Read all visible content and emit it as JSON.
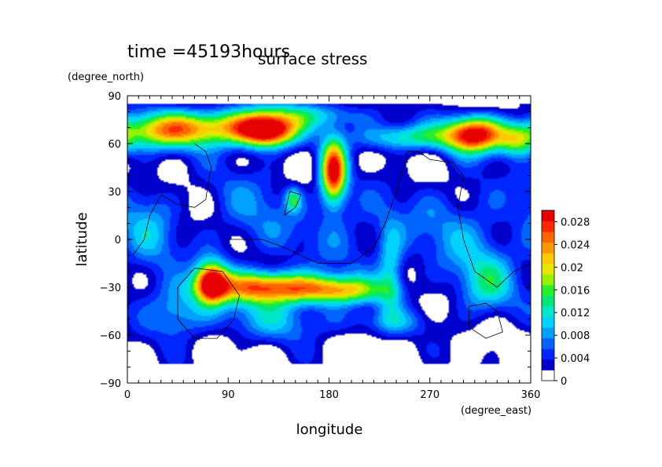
{
  "chart_data": {
    "type": "heatmap",
    "title": "surface stress",
    "subtitle": "time =45193hours",
    "xlabel": "longitude",
    "ylabel": "latitude",
    "xunit": "(degree_east)",
    "yunit": "(degree_north)",
    "xlim": [
      0,
      360
    ],
    "ylim": [
      -90,
      90
    ],
    "xticks": [
      "0",
      "90",
      "180",
      "270",
      "360"
    ],
    "yticks": [
      "90",
      "60",
      "30",
      "0",
      "−30",
      "−60",
      "−90"
    ],
    "colorbar": {
      "min": 0,
      "max": 0.03,
      "tick_labels": [
        "0",
        "0.004",
        "0.008",
        "0.012",
        "0.016",
        "0.02",
        "0.024",
        "0.028"
      ],
      "colors": [
        "#ffffff",
        "#0000cd",
        "#0026ff",
        "#0064ff",
        "#00a0ff",
        "#00d2ff",
        "#00e6c8",
        "#00e678",
        "#28f028",
        "#96f000",
        "#e6e600",
        "#ffc800",
        "#ff9600",
        "#ff6400",
        "#ff2800",
        "#e60000"
      ]
    },
    "contour_field": {
      "description_units": "stress magnitude",
      "blobs": [
        {
          "lon": 25,
          "lat": 68,
          "sx": 28,
          "sy": 8,
          "v": 0.016
        },
        {
          "lon": 80,
          "lat": 70,
          "sx": 35,
          "sy": 8,
          "v": 0.02
        },
        {
          "lon": 125,
          "lat": 68,
          "sx": 18,
          "sy": 7,
          "v": 0.03
        },
        {
          "lon": 165,
          "lat": 78,
          "sx": 40,
          "sy": 6,
          "v": 0.01
        },
        {
          "lon": 184,
          "lat": 42,
          "sx": 8,
          "sy": 14,
          "v": 0.03
        },
        {
          "lon": 250,
          "lat": 64,
          "sx": 32,
          "sy": 6,
          "v": 0.014
        },
        {
          "lon": 310,
          "lat": 66,
          "sx": 18,
          "sy": 8,
          "v": 0.03
        },
        {
          "lon": 348,
          "lat": 62,
          "sx": 12,
          "sy": 7,
          "v": 0.014
        },
        {
          "lon": 75,
          "lat": -27,
          "sx": 10,
          "sy": 9,
          "v": 0.03
        },
        {
          "lon": 125,
          "lat": -30,
          "sx": 35,
          "sy": 7,
          "v": 0.026
        },
        {
          "lon": 190,
          "lat": -32,
          "sx": 28,
          "sy": 6,
          "v": 0.018
        },
        {
          "lon": 235,
          "lat": -20,
          "sx": 8,
          "sy": 20,
          "v": 0.01
        },
        {
          "lon": 45,
          "lat": -45,
          "sx": 18,
          "sy": 12,
          "v": 0.01
        },
        {
          "lon": 130,
          "lat": -50,
          "sx": 40,
          "sy": 10,
          "v": 0.008
        },
        {
          "lon": 230,
          "lat": -52,
          "sx": 30,
          "sy": 6,
          "v": 0.006
        },
        {
          "lon": 320,
          "lat": -30,
          "sx": 18,
          "sy": 14,
          "v": 0.01
        },
        {
          "lon": 20,
          "lat": 5,
          "sx": 18,
          "sy": 25,
          "v": 0.007
        },
        {
          "lon": 110,
          "lat": 15,
          "sx": 35,
          "sy": 25,
          "v": 0.006
        },
        {
          "lon": 148,
          "lat": 25,
          "sx": 5,
          "sy": 5,
          "v": 0.012
        },
        {
          "lon": 300,
          "lat": 5,
          "sx": 40,
          "sy": 25,
          "v": 0.007
        },
        {
          "lon": 200,
          "lat": 5,
          "sx": 30,
          "sy": 20,
          "v": 0.005
        }
      ]
    },
    "coastlines": [
      {
        "name": "north-america",
        "points": [
          [
            5,
            -10
          ],
          [
            15,
            0
          ],
          [
            20,
            15
          ],
          [
            30,
            28
          ],
          [
            45,
            22
          ],
          [
            60,
            20
          ],
          [
            70,
            25
          ],
          [
            72,
            35
          ],
          [
            75,
            45
          ],
          [
            70,
            55
          ],
          [
            60,
            60
          ]
        ]
      },
      {
        "name": "south-america",
        "points": [
          [
            45,
            -30
          ],
          [
            60,
            -18
          ],
          [
            85,
            -20
          ],
          [
            100,
            -35
          ],
          [
            95,
            -50
          ],
          [
            80,
            -62
          ],
          [
            60,
            -62
          ],
          [
            45,
            -50
          ],
          [
            45,
            -30
          ]
        ]
      },
      {
        "name": "eurasia-africa",
        "points": [
          [
            90,
            0
          ],
          [
            120,
            0
          ],
          [
            140,
            -5
          ],
          [
            170,
            -15
          ],
          [
            200,
            -15
          ],
          [
            220,
            -5
          ],
          [
            230,
            10
          ],
          [
            240,
            30
          ],
          [
            250,
            55
          ],
          [
            260,
            55
          ],
          [
            270,
            50
          ],
          [
            290,
            48
          ],
          [
            300,
            40
          ],
          [
            295,
            20
          ],
          [
            300,
            0
          ],
          [
            310,
            -20
          ],
          [
            330,
            -30
          ],
          [
            345,
            -20
          ],
          [
            360,
            -15
          ]
        ]
      },
      {
        "name": "australia",
        "points": [
          [
            320,
            -40
          ],
          [
            330,
            -45
          ],
          [
            335,
            -58
          ],
          [
            320,
            -62
          ],
          [
            305,
            -55
          ],
          [
            305,
            -42
          ],
          [
            320,
            -40
          ]
        ]
      },
      {
        "name": "island",
        "points": [
          [
            140,
            15
          ],
          [
            150,
            20
          ],
          [
            155,
            28
          ],
          [
            145,
            30
          ],
          [
            140,
            15
          ]
        ]
      }
    ]
  }
}
